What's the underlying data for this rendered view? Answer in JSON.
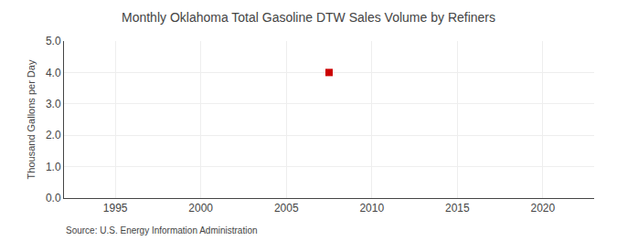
{
  "chart_data": {
    "type": "scatter",
    "title": "Monthly Oklahoma Total Gasoline DTW Sales Volume by Refiners",
    "ylabel": "Thousand Gallons per Day",
    "annotations": [
      "Source: U.S. Energy Information Administration"
    ],
    "x": [
      2007.5
    ],
    "values": [
      4.0
    ],
    "color": "#cc0000",
    "marker": "square",
    "xlim": [
      1992,
      2023
    ],
    "xticks": [
      1995,
      2000,
      2005,
      2010,
      2015,
      2020
    ],
    "ylim": [
      0.0,
      5.0
    ],
    "yticks": [
      {
        "value": 0.0,
        "label": "0.0"
      },
      {
        "value": 1.0,
        "label": "1.0"
      },
      {
        "value": 2.0,
        "label": "2.0"
      },
      {
        "value": 3.0,
        "label": "3.0"
      },
      {
        "value": 4.0,
        "label": "4.0"
      },
      {
        "value": 5.0,
        "label": "5.0"
      }
    ],
    "grid": true
  }
}
